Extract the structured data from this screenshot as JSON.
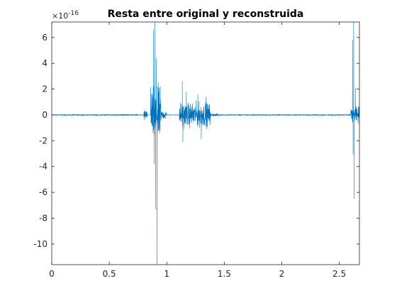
{
  "chart_data": {
    "type": "line",
    "title": "Resta entre original y reconstruida",
    "xlabel": "",
    "ylabel": "",
    "xlim": [
      0,
      2.675
    ],
    "ylim": [
      -11.6,
      7.2
    ],
    "y_exponent_label": "×10",
    "y_exponent_power": "-16",
    "xticks": [
      0,
      0.5,
      1,
      1.5,
      2,
      2.5
    ],
    "xtick_labels": [
      "0",
      "0.5",
      "1",
      "1.5",
      "2",
      "2.5"
    ],
    "yticks": [
      -10,
      -8,
      -6,
      -4,
      -2,
      0,
      2,
      4,
      6
    ],
    "ytick_labels": [
      "-10",
      "-8",
      "-6",
      "-4",
      "-2",
      "0",
      "2",
      "4",
      "6"
    ],
    "grid": false,
    "series": [
      {
        "color": "#0072bd",
        "bursts": [
          {
            "x": [
              0.0,
              0.78
            ],
            "amp": 0.05
          },
          {
            "x": [
              0.56,
              0.57
            ],
            "amp": 0.12
          },
          {
            "x": [
              0.8,
              0.83
            ],
            "amp": 0.6
          },
          {
            "x": [
              0.86,
              0.95
            ],
            "amp": 3.0
          },
          {
            "x": [
              0.95,
              1.0
            ],
            "amp": 0.5
          },
          {
            "x": [
              1.11,
              1.38
            ],
            "amp": 1.3
          },
          {
            "x": [
              1.38,
              1.45
            ],
            "amp": 0.15
          },
          {
            "x": [
              1.45,
              2.6
            ],
            "amp": 0.05
          },
          {
            "x": [
              2.6,
              2.675
            ],
            "amp": 0.9
          }
        ],
        "spikes": [
          {
            "x": 0.885,
            "y": 6.6
          },
          {
            "x": 0.892,
            "y": -3.8
          },
          {
            "x": 0.898,
            "y": 7.2
          },
          {
            "x": 0.903,
            "y": -7.3
          },
          {
            "x": 0.91,
            "y": 4.4
          },
          {
            "x": 0.916,
            "y": -11.6
          },
          {
            "x": 0.922,
            "y": 2.2
          },
          {
            "x": 1.135,
            "y": 2.6
          },
          {
            "x": 1.14,
            "y": -2.1
          },
          {
            "x": 1.17,
            "y": 1.8
          },
          {
            "x": 1.27,
            "y": 1.6
          },
          {
            "x": 1.3,
            "y": -1.9
          },
          {
            "x": 1.34,
            "y": 1.4
          },
          {
            "x": 2.615,
            "y": 5.8
          },
          {
            "x": 2.62,
            "y": -3.1
          },
          {
            "x": 2.625,
            "y": 7.2
          },
          {
            "x": 2.63,
            "y": -6.5
          },
          {
            "x": 2.64,
            "y": 2.1
          }
        ]
      }
    ]
  }
}
